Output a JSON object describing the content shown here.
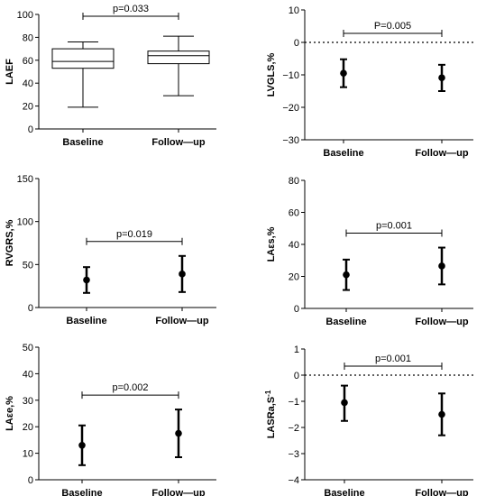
{
  "chart_data": [
    {
      "type": "box",
      "ylabel": "LAEF",
      "ylim": [
        0,
        100
      ],
      "yticks": [
        0,
        20,
        40,
        60,
        80,
        100
      ],
      "categories": [
        "Baseline",
        "Follow—up"
      ],
      "boxes": [
        {
          "min": 19,
          "q1": 53,
          "median": 59,
          "q3": 70,
          "max": 76
        },
        {
          "min": 29,
          "q1": 57,
          "median": 64,
          "q3": 68,
          "max": 81
        }
      ],
      "annotation": "p=0.033",
      "ref_zero": false
    },
    {
      "type": "errorbar",
      "ylabel": "LVGLS,%",
      "ylim": [
        -30,
        10
      ],
      "yticks": [
        -30,
        -20,
        -10,
        0,
        10
      ],
      "categories": [
        "Baseline",
        "Follow—up"
      ],
      "points": [
        {
          "mean": -9.5,
          "low": -13.8,
          "high": -5.2
        },
        {
          "mean": -10.9,
          "low": -15,
          "high": -6.9
        }
      ],
      "annotation": "P=0.005",
      "ref_zero": true
    },
    {
      "type": "errorbar",
      "ylabel": "RVGRS,%",
      "ylim": [
        0,
        150
      ],
      "yticks": [
        0,
        50,
        100,
        150
      ],
      "categories": [
        "Baseline",
        "Follow—up"
      ],
      "points": [
        {
          "mean": 32,
          "low": 17,
          "high": 47
        },
        {
          "mean": 39,
          "low": 18,
          "high": 60
        }
      ],
      "annotation": "p=0.019",
      "ref_zero": false
    },
    {
      "type": "errorbar",
      "ylabel": "LAεs,%",
      "ylim": [
        0,
        80
      ],
      "yticks": [
        0,
        20,
        40,
        60,
        80
      ],
      "categories": [
        "Baseline",
        "Follow—up"
      ],
      "points": [
        {
          "mean": 21,
          "low": 11.5,
          "high": 30.5
        },
        {
          "mean": 26.5,
          "low": 15,
          "high": 38
        }
      ],
      "annotation": "p=0.001",
      "ref_zero": false
    },
    {
      "type": "errorbar",
      "ylabel": "LAεe,%",
      "ylim": [
        0,
        50
      ],
      "yticks": [
        0,
        10,
        20,
        30,
        40,
        50
      ],
      "categories": [
        "Baseline",
        "Follow—up"
      ],
      "points": [
        {
          "mean": 13,
          "low": 5.5,
          "high": 20.5
        },
        {
          "mean": 17.5,
          "low": 8.5,
          "high": 26.5
        }
      ],
      "annotation": "p=0.002",
      "ref_zero": false
    },
    {
      "type": "errorbar",
      "ylabel": "LASRa,S",
      "ylabel_sup": "-1",
      "ylim": [
        -4,
        1
      ],
      "yticks": [
        -4,
        -3,
        -2,
        -1,
        0,
        1
      ],
      "categories": [
        "Baseline",
        "Follow—up"
      ],
      "points": [
        {
          "mean": -1.05,
          "low": -1.75,
          "high": -0.4
        },
        {
          "mean": -1.5,
          "low": -2.3,
          "high": -0.7
        }
      ],
      "annotation": "p=0.001",
      "ref_zero": true
    }
  ]
}
